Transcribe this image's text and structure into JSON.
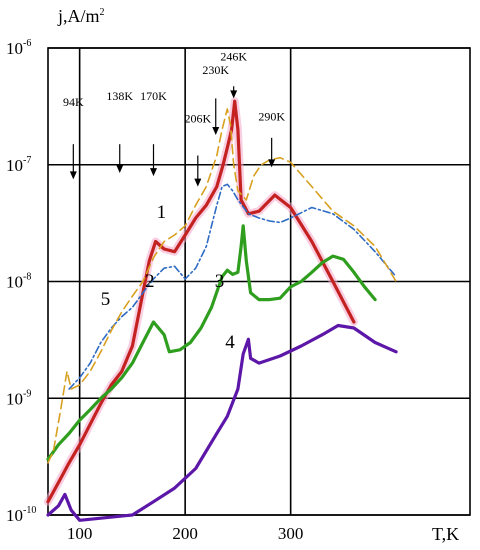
{
  "chart_data": {
    "type": "line",
    "ylabel": "j,A/m",
    "ylabel_exponent": "2",
    "xlabel": "T,K",
    "xlim": [
      70,
      470
    ],
    "ylim": [
      1e-10,
      1e-06
    ],
    "y_scale": "log",
    "grid": true,
    "x_ticks": [
      {
        "value": 100,
        "label": "100"
      },
      {
        "value": 200,
        "label": "200"
      },
      {
        "value": 300,
        "label": "300"
      }
    ],
    "y_ticks": [
      {
        "value": 1e-06,
        "base": "10",
        "exp": "-6"
      },
      {
        "value": 1e-07,
        "base": "10",
        "exp": "-7"
      },
      {
        "value": 1e-08,
        "base": "10",
        "exp": "-8"
      },
      {
        "value": 1e-09,
        "base": "10",
        "exp": "-9"
      },
      {
        "value": 1e-10,
        "base": "10",
        "exp": "-10"
      }
    ],
    "annotations": [
      {
        "label": "94K",
        "x": 94,
        "arrow_from": 1.5e-07,
        "arrow_to": 7.5e-08,
        "label_y": 3.2e-07
      },
      {
        "label": "138K",
        "x": 138,
        "arrow_from": 1.5e-07,
        "arrow_to": 8.5e-08,
        "label_y": 3.6e-07
      },
      {
        "label": "170K",
        "x": 170,
        "arrow_from": 1.5e-07,
        "arrow_to": 8e-08,
        "label_y": 3.6e-07
      },
      {
        "label": "206K",
        "x": 212,
        "arrow_from": 1.2e-07,
        "arrow_to": 6.5e-08,
        "label_y": 2.3e-07
      },
      {
        "label": "230K",
        "x": 229,
        "arrow_from": 3.7e-07,
        "arrow_to": 1.8e-07,
        "label_y": 6e-07
      },
      {
        "label": "246K",
        "x": 246,
        "arrow_from": 4.7e-07,
        "arrow_to": 3.7e-07,
        "label_y": 7.8e-07
      },
      {
        "label": "290K",
        "x": 282,
        "arrow_from": 1.7e-07,
        "arrow_to": 9.5e-08,
        "label_y": 2.4e-07
      }
    ],
    "series": [
      {
        "name": "1",
        "color": "#c42121",
        "style": "solid",
        "highlight": true,
        "label_pos": {
          "x": 173,
          "y": 3.5e-08
        },
        "points": [
          [
            70,
            1.3e-10
          ],
          [
            80,
            1.9e-10
          ],
          [
            90,
            2.8e-10
          ],
          [
            100,
            4e-10
          ],
          [
            110,
            6e-10
          ],
          [
            120,
            9e-10
          ],
          [
            130,
            1.3e-09
          ],
          [
            140,
            1.7e-09
          ],
          [
            150,
            2.8e-09
          ],
          [
            160,
            8e-09
          ],
          [
            166,
            1.5e-08
          ],
          [
            172,
            2.2e-08
          ],
          [
            180,
            1.9e-08
          ],
          [
            190,
            1.8e-08
          ],
          [
            200,
            2.5e-08
          ],
          [
            210,
            3.5e-08
          ],
          [
            220,
            4.5e-08
          ],
          [
            230,
            6.5e-08
          ],
          [
            236,
            1e-07
          ],
          [
            240,
            1.4e-07
          ],
          [
            244,
            2e-07
          ],
          [
            247,
            3.5e-07
          ],
          [
            250,
            2e-07
          ],
          [
            253,
            5e-08
          ],
          [
            260,
            3.8e-08
          ],
          [
            270,
            4e-08
          ],
          [
            285,
            5.5e-08
          ],
          [
            300,
            4.3e-08
          ],
          [
            320,
            2.2e-08
          ],
          [
            340,
            1e-08
          ],
          [
            360,
            4.5e-09
          ]
        ]
      },
      {
        "name": "2",
        "color": "#2e6bc4",
        "style": "dashdot",
        "highlight": false,
        "label_pos": {
          "x": 162,
          "y": 9e-09
        },
        "points": [
          [
            90,
            1.2e-09
          ],
          [
            100,
            1.5e-09
          ],
          [
            110,
            2e-09
          ],
          [
            120,
            3e-09
          ],
          [
            130,
            4e-09
          ],
          [
            140,
            5e-09
          ],
          [
            150,
            6e-09
          ],
          [
            160,
            8e-09
          ],
          [
            170,
            1.05e-08
          ],
          [
            180,
            1.3e-08
          ],
          [
            190,
            1.35e-08
          ],
          [
            200,
            1.05e-08
          ],
          [
            210,
            1.3e-08
          ],
          [
            220,
            2e-08
          ],
          [
            230,
            4.5e-08
          ],
          [
            235,
            6.5e-08
          ],
          [
            240,
            6.8e-08
          ],
          [
            245,
            6e-08
          ],
          [
            250,
            5e-08
          ],
          [
            260,
            3.8e-08
          ],
          [
            270,
            3.5e-08
          ],
          [
            280,
            3.3e-08
          ],
          [
            290,
            3.2e-08
          ],
          [
            300,
            3.5e-08
          ],
          [
            320,
            4.3e-08
          ],
          [
            340,
            3.8e-08
          ],
          [
            360,
            2.8e-08
          ],
          [
            380,
            1.8e-08
          ],
          [
            400,
            1.1e-08
          ]
        ]
      },
      {
        "name": "3",
        "color": "#2f9e1f",
        "style": "solid",
        "highlight": false,
        "label_pos": {
          "x": 228,
          "y": 9e-09
        },
        "points": [
          [
            70,
            3e-10
          ],
          [
            80,
            4e-10
          ],
          [
            90,
            5e-10
          ],
          [
            100,
            6.5e-10
          ],
          [
            110,
            8e-10
          ],
          [
            120,
            1e-09
          ],
          [
            130,
            1.2e-09
          ],
          [
            140,
            1.5e-09
          ],
          [
            150,
            2e-09
          ],
          [
            160,
            3e-09
          ],
          [
            170,
            4.5e-09
          ],
          [
            180,
            3.5e-09
          ],
          [
            185,
            2.5e-09
          ],
          [
            195,
            2.6e-09
          ],
          [
            205,
            3e-09
          ],
          [
            215,
            4e-09
          ],
          [
            225,
            6e-09
          ],
          [
            235,
            1.1e-08
          ],
          [
            240,
            1.25e-08
          ],
          [
            245,
            1.15e-08
          ],
          [
            250,
            1.2e-08
          ],
          [
            253,
            2e-08
          ],
          [
            255,
            3e-08
          ],
          [
            258,
            1.5e-08
          ],
          [
            262,
            8e-09
          ],
          [
            270,
            7e-09
          ],
          [
            280,
            7e-09
          ],
          [
            290,
            7.2e-09
          ],
          [
            300,
            9e-09
          ],
          [
            310,
            1e-08
          ],
          [
            320,
            1.2e-08
          ],
          [
            330,
            1.45e-08
          ],
          [
            340,
            1.65e-08
          ],
          [
            350,
            1.55e-08
          ],
          [
            360,
            1.2e-08
          ],
          [
            370,
            9e-09
          ],
          [
            380,
            7e-09
          ]
        ]
      },
      {
        "name": "4",
        "color": "#5d17a8",
        "style": "solid",
        "highlight": false,
        "label_pos": {
          "x": 238,
          "y": 2.7e-09
        },
        "points": [
          [
            70,
            1e-10
          ],
          [
            80,
            1.2e-10
          ],
          [
            86,
            1.5e-10
          ],
          [
            92,
            1.1e-10
          ],
          [
            100,
            9e-11
          ],
          [
            150,
            1e-10
          ],
          [
            170,
            1.3e-10
          ],
          [
            190,
            1.7e-10
          ],
          [
            210,
            2.5e-10
          ],
          [
            230,
            5e-10
          ],
          [
            240,
            7e-10
          ],
          [
            250,
            1.2e-09
          ],
          [
            255,
            2.4e-09
          ],
          [
            260,
            3.2e-09
          ],
          [
            262,
            2.2e-09
          ],
          [
            270,
            2e-09
          ],
          [
            290,
            2.3e-09
          ],
          [
            310,
            2.8e-09
          ],
          [
            330,
            3.5e-09
          ],
          [
            345,
            4.2e-09
          ],
          [
            360,
            4e-09
          ],
          [
            380,
            3e-09
          ],
          [
            400,
            2.5e-09
          ]
        ]
      },
      {
        "name": "5",
        "color": "#d8a020",
        "style": "dashed",
        "highlight": false,
        "label_pos": {
          "x": 120,
          "y": 6.3e-09
        },
        "points": [
          [
            70,
            2.8e-10
          ],
          [
            75,
            3.5e-10
          ],
          [
            82,
            8e-10
          ],
          [
            88,
            1.7e-09
          ],
          [
            92,
            1.2e-09
          ],
          [
            100,
            1.3e-09
          ],
          [
            110,
            1.7e-09
          ],
          [
            120,
            2.5e-09
          ],
          [
            130,
            3.8e-09
          ],
          [
            140,
            5.5e-09
          ],
          [
            150,
            7.5e-09
          ],
          [
            160,
            1e-08
          ],
          [
            170,
            1.6e-08
          ],
          [
            180,
            2.2e-08
          ],
          [
            190,
            2.5e-08
          ],
          [
            200,
            3e-08
          ],
          [
            210,
            4.5e-08
          ],
          [
            220,
            6.5e-08
          ],
          [
            230,
            1.2e-07
          ],
          [
            235,
            2e-07
          ],
          [
            240,
            3e-07
          ],
          [
            243,
            2.2e-07
          ],
          [
            246,
            1e-07
          ],
          [
            250,
            6e-08
          ],
          [
            258,
            5e-08
          ],
          [
            265,
            8e-08
          ],
          [
            272,
            1e-07
          ],
          [
            280,
            1.1e-07
          ],
          [
            290,
            1.15e-07
          ],
          [
            300,
            1.05e-07
          ],
          [
            320,
            6.5e-08
          ],
          [
            340,
            4e-08
          ],
          [
            360,
            3e-08
          ],
          [
            380,
            2e-08
          ],
          [
            400,
            1e-08
          ]
        ]
      }
    ]
  }
}
